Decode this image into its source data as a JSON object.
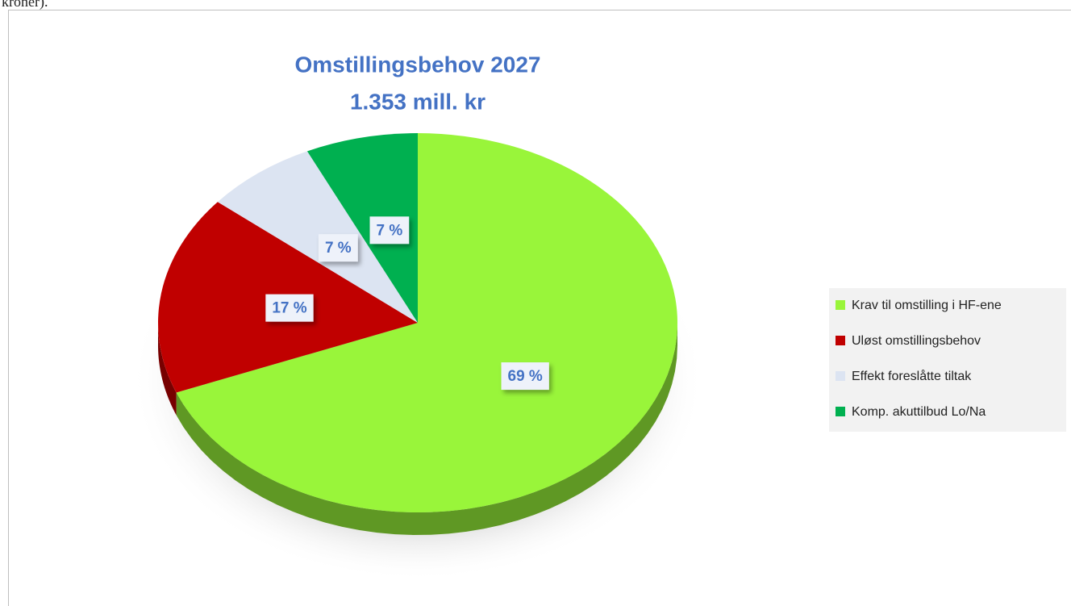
{
  "caption_fragment": "kroner).",
  "chart_data": {
    "type": "pie",
    "title": "Omstillingsbehov 2027",
    "subtitle": "1.353 mill. kr",
    "categories": [
      "Krav til omstilling i HF-ene",
      "Uløst omstillingsbehov",
      "Effekt foreslåtte tiltak",
      "Komp. akuttilbud Lo/Na"
    ],
    "values": [
      69,
      17,
      7,
      7
    ],
    "value_labels": [
      "69 %",
      "17 %",
      "7 %",
      "7 %"
    ],
    "colors": [
      "#99f53a",
      "#c00000",
      "#dce4f2",
      "#00b050"
    ],
    "legend": "right"
  }
}
